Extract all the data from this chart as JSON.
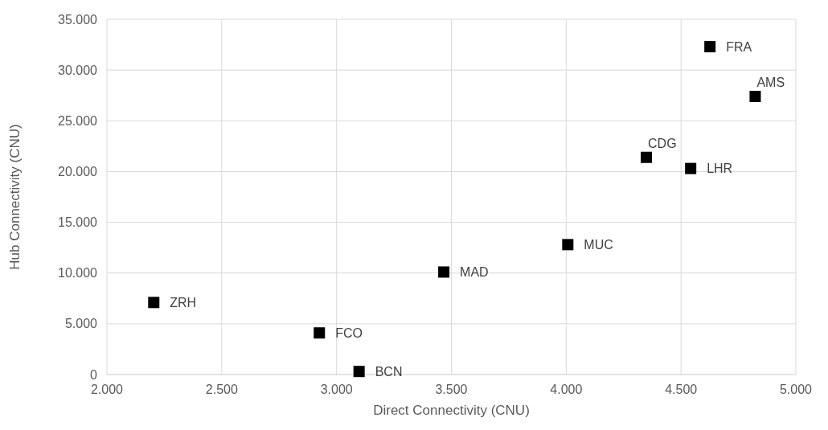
{
  "chart_data": {
    "type": "scatter",
    "xlabel": "Direct Connectivity (CNU)",
    "ylabel": "Hub Connectivity (CNU)",
    "x": [
      4626,
      4823,
      4349,
      4542,
      4007,
      3467,
      2204,
      2925,
      3098
    ],
    "series": [
      {
        "color": "#000000",
        "values": [
          32300,
          27400,
          21400,
          20300,
          12800,
          10100,
          7100,
          4100,
          300
        ]
      }
    ],
    "marker": "square",
    "grid": true,
    "xlim": [
      2000,
      5000
    ],
    "xticks": [
      {
        "value": 2000,
        "label": "2.000"
      },
      {
        "value": 2500,
        "label": "2.500"
      },
      {
        "value": 3000,
        "label": "3.000"
      },
      {
        "value": 3500,
        "label": "3.500"
      },
      {
        "value": 4000,
        "label": "4.000"
      },
      {
        "value": 4500,
        "label": "4.500"
      },
      {
        "value": 5000,
        "label": "5.000"
      }
    ],
    "ylim": [
      0,
      35000
    ],
    "yticks": [
      0,
      {
        "value": 5000,
        "label": "5.000"
      },
      {
        "value": 10000,
        "label": "10.000"
      },
      {
        "value": 15000,
        "label": "15.000"
      },
      {
        "value": 20000,
        "label": "20.000"
      },
      {
        "value": 25000,
        "label": "25.000"
      },
      {
        "value": 30000,
        "label": "30.000"
      },
      {
        "value": 35000,
        "label": "35.000"
      }
    ],
    "annotations": [
      {
        "text": "FRA",
        "x": 4626,
        "y": 32300
      },
      {
        "text": "AMS",
        "x": 4823,
        "y": 27400
      },
      {
        "text": "CDG",
        "x": 4349,
        "y": 21400
      },
      {
        "text": "LHR",
        "x": 4542,
        "y": 20300
      },
      {
        "text": "MUC",
        "x": 4007,
        "y": 12800
      },
      {
        "text": "MAD",
        "x": 3467,
        "y": 10100
      },
      {
        "text": "ZRH",
        "x": 2204,
        "y": 7100
      },
      {
        "text": "FCO",
        "x": 2925,
        "y": 4100
      },
      {
        "text": "BCN",
        "x": 3098,
        "y": 300
      }
    ]
  }
}
